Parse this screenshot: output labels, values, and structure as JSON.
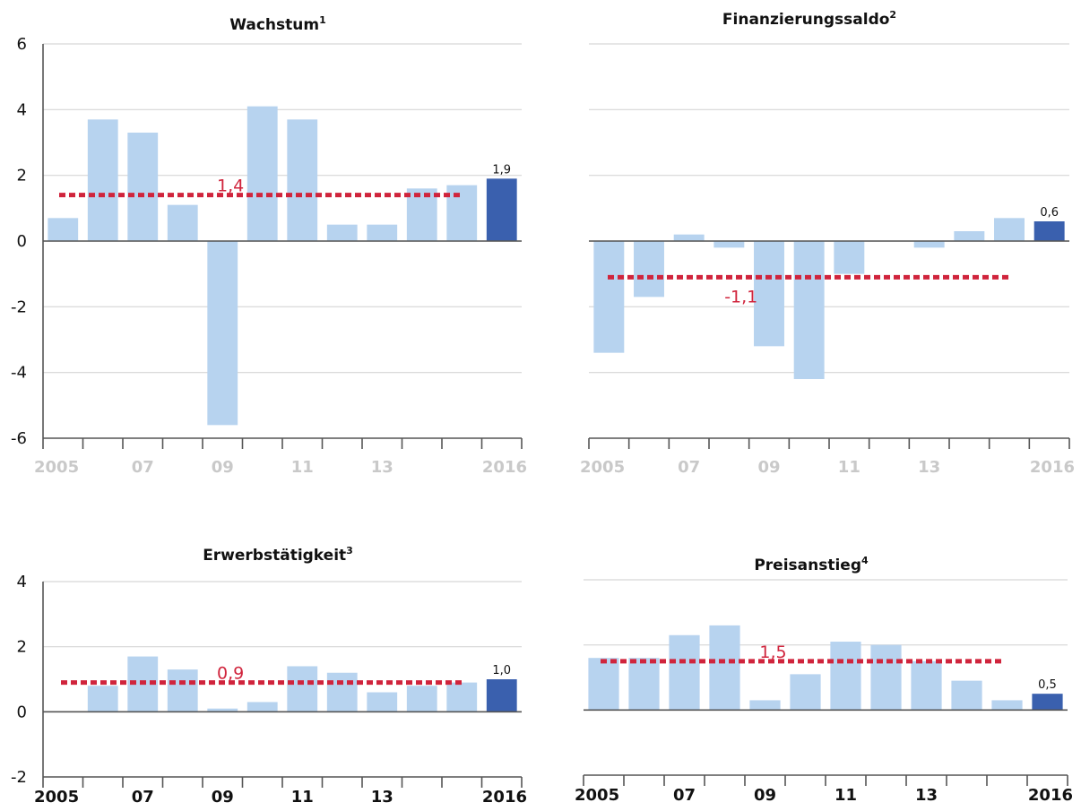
{
  "chart_data": [
    {
      "type": "bar",
      "title": "Wachstum",
      "title_superscript": "1",
      "years": [
        2005,
        2006,
        2007,
        2008,
        2009,
        2010,
        2011,
        2012,
        2013,
        2014,
        2015,
        2016
      ],
      "values": [
        0.7,
        3.7,
        3.3,
        1.1,
        -5.6,
        4.1,
        3.7,
        0.5,
        0.5,
        1.6,
        1.7,
        1.9
      ],
      "highlight_last": true,
      "last_value_label": "1,9",
      "average": 1.4,
      "average_label": "1,4",
      "ylim": [
        -6,
        6
      ],
      "yticks": [
        -6,
        -4,
        -2,
        0,
        2,
        4,
        6
      ],
      "show_yticks": true,
      "xtick_labels": [
        "2005",
        "07",
        "09",
        "11",
        "13",
        "2016"
      ],
      "xtick_style": "light"
    },
    {
      "type": "bar",
      "title": "Finanzierungssaldo",
      "title_superscript": "2",
      "years": [
        2005,
        2006,
        2007,
        2008,
        2009,
        2010,
        2011,
        2012,
        2013,
        2014,
        2015,
        2016
      ],
      "values": [
        -3.4,
        -1.7,
        0.2,
        -0.2,
        -3.2,
        -4.2,
        -1.0,
        0.0,
        -0.2,
        0.3,
        0.7,
        0.6
      ],
      "highlight_last": true,
      "last_value_label": "0,6",
      "average": -1.1,
      "average_label": "-1,1",
      "ylim": [
        -6,
        6
      ],
      "yticks": [
        -6,
        -4,
        -2,
        0,
        2,
        4,
        6
      ],
      "show_yticks": false,
      "xtick_labels": [
        "2005",
        "07",
        "09",
        "11",
        "13",
        "2016"
      ],
      "xtick_style": "light"
    },
    {
      "type": "bar",
      "title": "Erwerbstätigkeit",
      "title_superscript": "3",
      "years": [
        2005,
        2006,
        2007,
        2008,
        2009,
        2010,
        2011,
        2012,
        2013,
        2014,
        2015,
        2016
      ],
      "values": [
        0.0,
        0.8,
        1.7,
        1.3,
        0.1,
        0.3,
        1.4,
        1.2,
        0.6,
        0.8,
        0.9,
        1.0
      ],
      "highlight_last": true,
      "last_value_label": "1,0",
      "average": 0.9,
      "average_label": "0,9",
      "ylim": [
        -2,
        4
      ],
      "yticks": [
        -2,
        0,
        2,
        4
      ],
      "show_yticks": true,
      "xtick_labels": [
        "2005",
        "07",
        "09",
        "11",
        "13",
        "2016"
      ],
      "xtick_style": "dark"
    },
    {
      "type": "bar",
      "title": "Preisanstieg",
      "title_superscript": "4",
      "years": [
        2005,
        2006,
        2007,
        2008,
        2009,
        2010,
        2011,
        2012,
        2013,
        2014,
        2015,
        2016
      ],
      "values": [
        1.6,
        1.6,
        2.3,
        2.6,
        0.3,
        1.1,
        2.1,
        2.0,
        1.5,
        0.9,
        0.3,
        0.5
      ],
      "highlight_last": true,
      "last_value_label": "0,5",
      "average": 1.5,
      "average_label": "1,5",
      "ylim": [
        -2,
        4
      ],
      "yticks": [
        -2,
        0,
        2,
        4
      ],
      "show_yticks": false,
      "xtick_labels": [
        "2005",
        "07",
        "09",
        "11",
        "13",
        "2016"
      ],
      "xtick_style": "dark"
    }
  ],
  "colors": {
    "bar": "#b7d3ef",
    "bar_highlight": "#3a60ae",
    "average_line": "#d0243c",
    "grid": "#d6d6d6",
    "axis": "#555555",
    "xtick_light": "#c9c9c9",
    "xtick_dark": "#111111"
  }
}
